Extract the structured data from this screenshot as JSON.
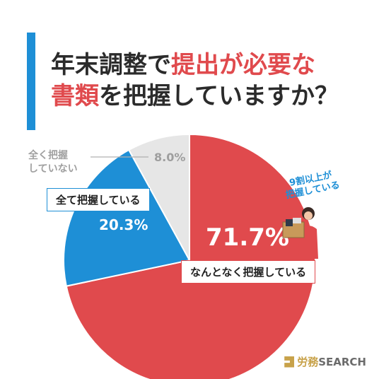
{
  "title": {
    "line1_a": "年末調整で",
    "line1_b": "提出が必要な",
    "line2_a": "書類",
    "line2_b": "を把握していますか？"
  },
  "chart_data": {
    "type": "pie",
    "title": "年末調整で提出が必要な書類を把握していますか？",
    "slices": [
      {
        "label": "なんとなく把握している",
        "value": 71.7,
        "display": "71.7%",
        "color": "#e04a4d"
      },
      {
        "label": "全て把握している",
        "value": 20.3,
        "display": "20.3%",
        "color": "#1e8fd6"
      },
      {
        "label": "全く把握していない",
        "value": 8.0,
        "display": "8.0%",
        "color": "#e6e6e6"
      }
    ],
    "annotations": [
      "9割以上が把握している"
    ]
  },
  "labels": {
    "not_at_all_line1": "全く把握",
    "not_at_all_line2": "していない",
    "all": "全て把握している",
    "somewhat": "なんとなく把握している",
    "note_line1": "9割以上が",
    "note_line2": "把握している"
  },
  "logo": {
    "brand": "労務",
    "suffix": "SEARCH"
  }
}
